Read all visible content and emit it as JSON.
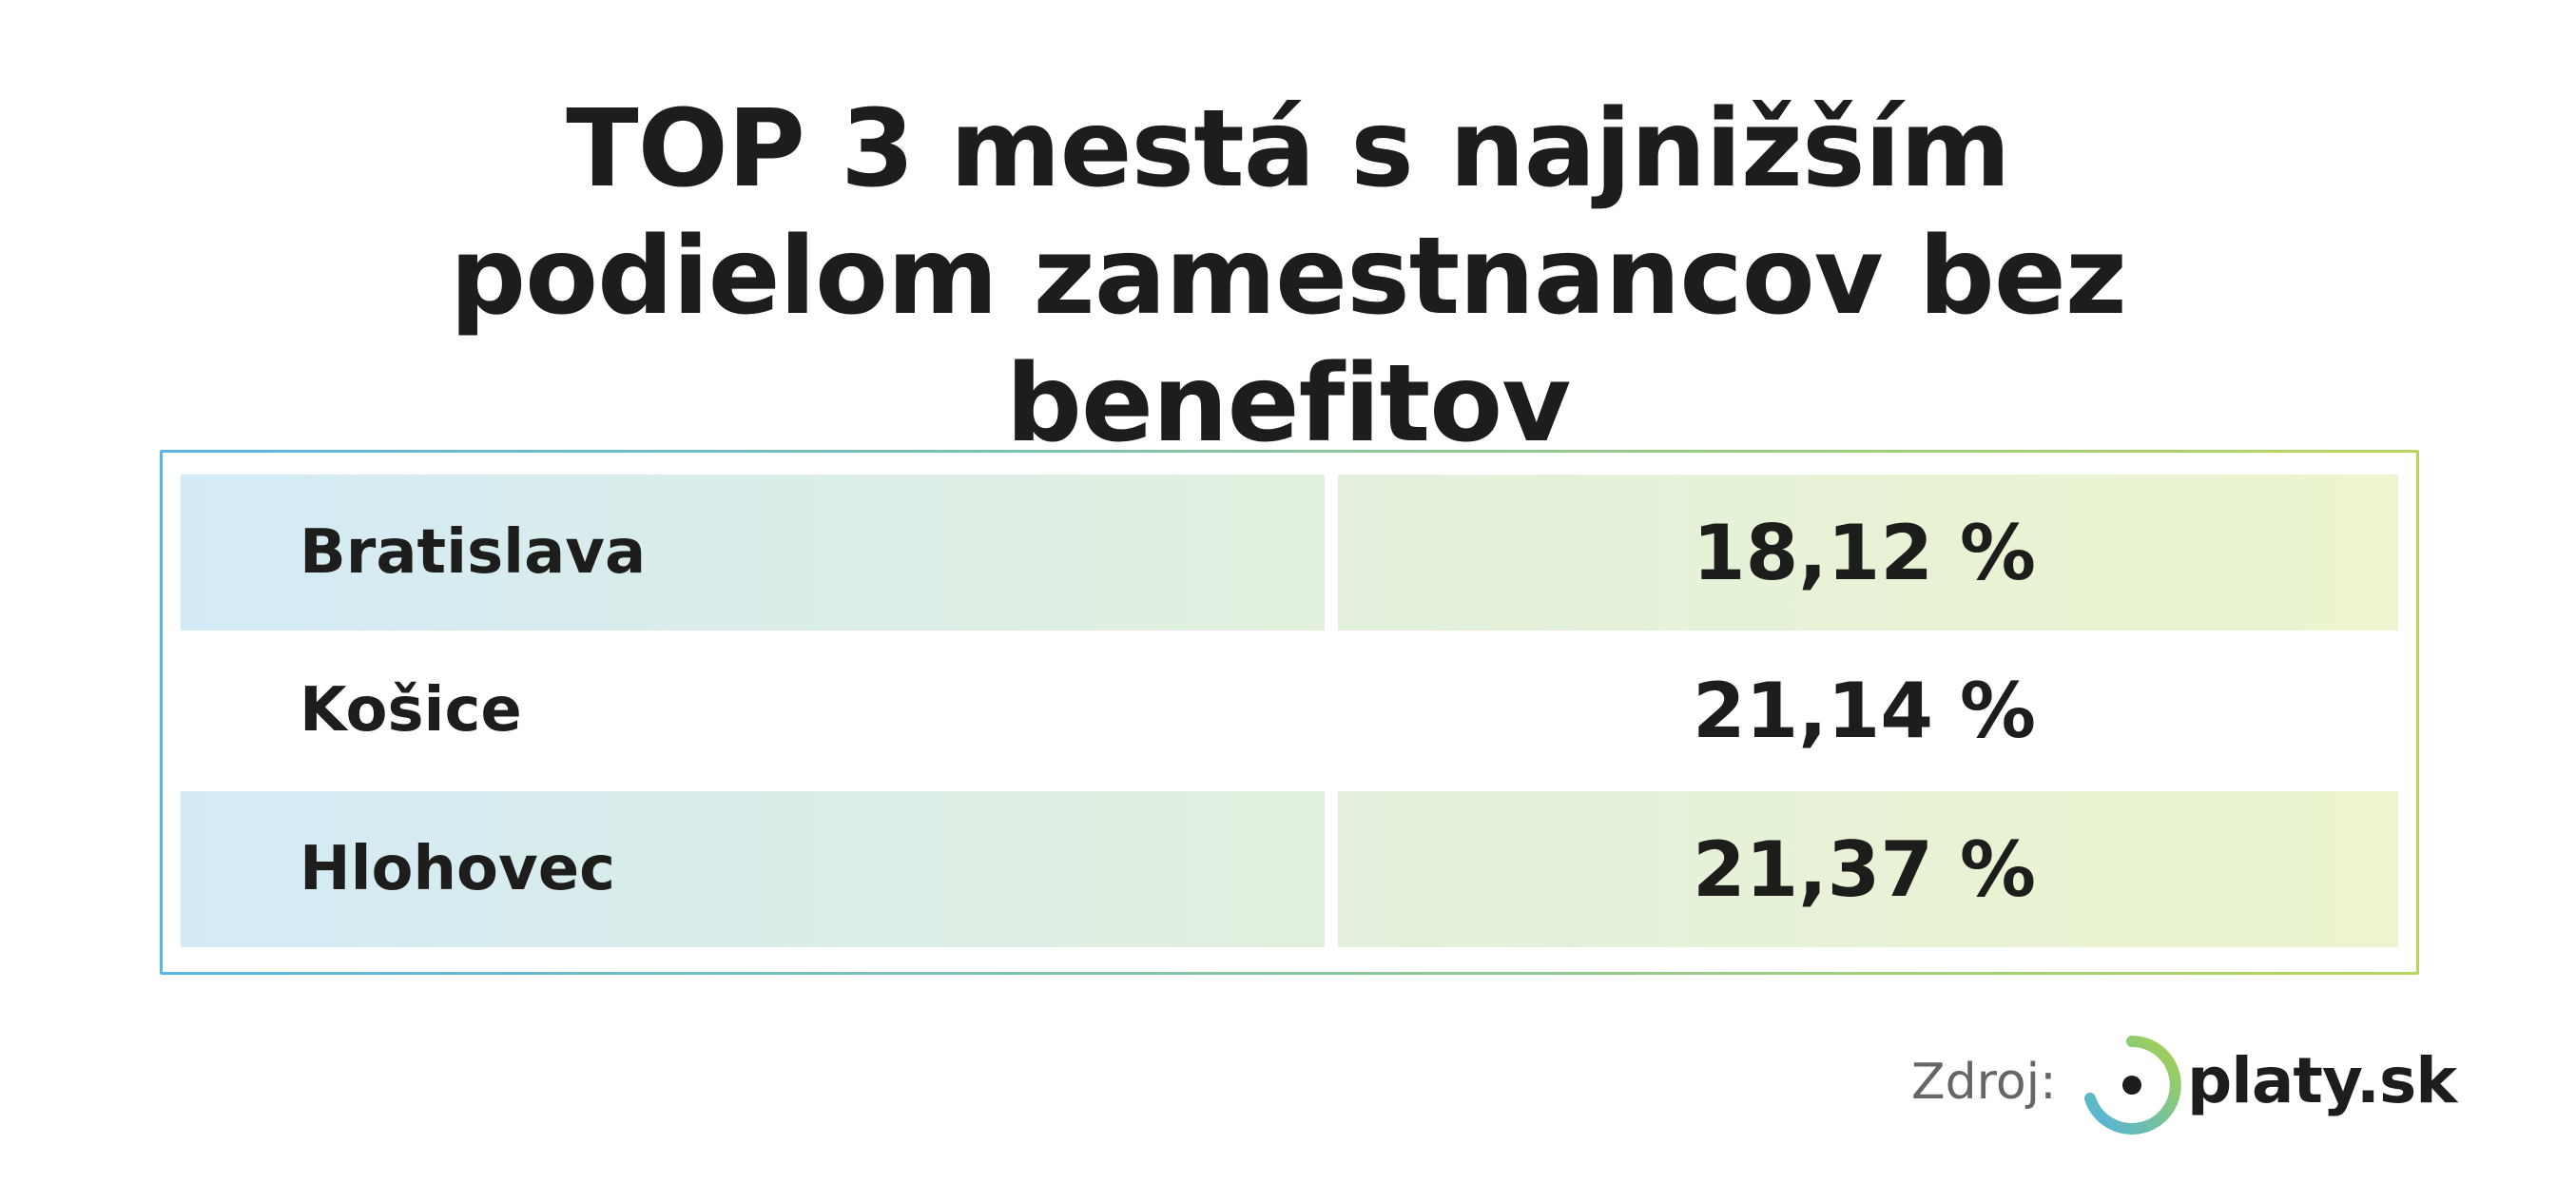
{
  "header": {
    "title": "TOP 3 mestá s najnižším podielom zamestnancov bez benefitov"
  },
  "table": {
    "rows": [
      [
        "Bratislava",
        "18,12 %"
      ],
      [
        "Košice",
        "21,14 %"
      ],
      [
        "Hlohovec",
        "21,37 %"
      ]
    ]
  },
  "footer": {
    "source_label": "Zdroj:",
    "logo_text": "platy.sk"
  }
}
